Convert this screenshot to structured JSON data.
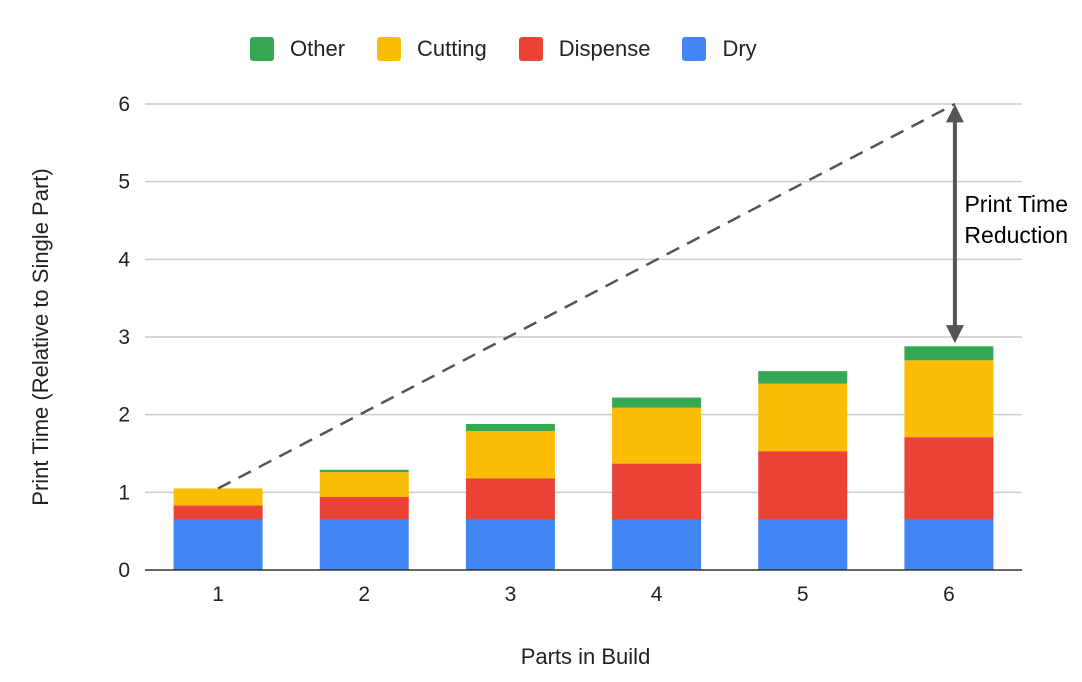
{
  "chart_data": {
    "type": "bar",
    "stacked": true,
    "xlabel": "Parts in Build",
    "ylabel": "Print Time (Relative to Single Part)",
    "ylim": [
      0,
      6
    ],
    "yticks": [
      "0",
      "1",
      "2",
      "3",
      "4",
      "5",
      "6"
    ],
    "categories": [
      "1",
      "2",
      "3",
      "4",
      "5",
      "6"
    ],
    "series": [
      {
        "name": "Dry",
        "color": "#4285F4",
        "values": [
          0.65,
          0.65,
          0.65,
          0.65,
          0.65,
          0.65
        ]
      },
      {
        "name": "Dispense",
        "color": "#EA4335",
        "values": [
          0.18,
          0.29,
          0.53,
          0.72,
          0.88,
          1.06
        ]
      },
      {
        "name": "Cutting",
        "color": "#FBBC04",
        "values": [
          0.22,
          0.32,
          0.61,
          0.72,
          0.87,
          0.99
        ]
      },
      {
        "name": "Other",
        "color": "#34A853",
        "values": [
          0.0,
          0.03,
          0.09,
          0.13,
          0.16,
          0.18
        ]
      }
    ],
    "legend_order": [
      "Other",
      "Cutting",
      "Dispense",
      "Dry"
    ],
    "legend_position": "top",
    "grid": true,
    "reference_line": {
      "style": "dashed",
      "color": "#555555",
      "from": {
        "x": "1",
        "y": 1.05
      },
      "to": {
        "x": "6",
        "y": 6
      }
    },
    "annotation": {
      "lines": [
        "Print Time",
        "Reduction"
      ],
      "arrow_from_y": 6,
      "arrow_to_y": 2.89,
      "arrow_color": "#555555"
    }
  }
}
